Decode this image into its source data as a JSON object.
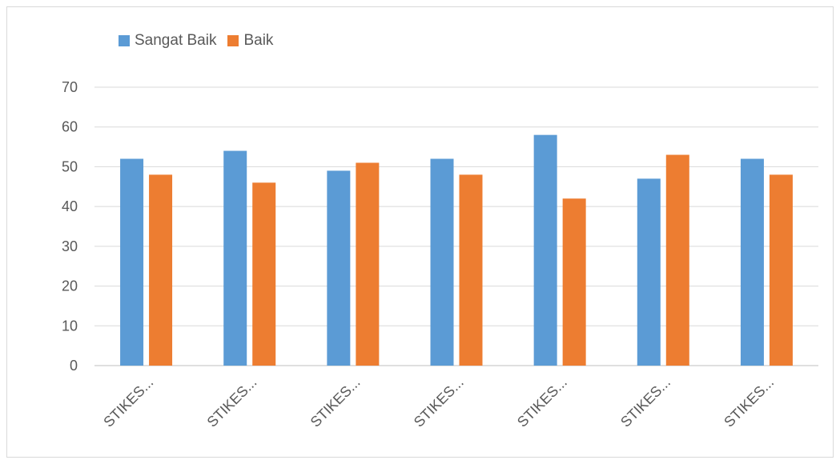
{
  "chart_data": {
    "type": "bar",
    "categories": [
      "STIKES...",
      "STIKES...",
      "STIKES...",
      "STIKES...",
      "STIKES...",
      "STIKES...",
      "STIKES..."
    ],
    "series": [
      {
        "name": "Sangat Baik",
        "color": "#5b9bd5",
        "values": [
          52,
          54,
          49,
          52,
          58,
          47,
          52
        ]
      },
      {
        "name": "Baik",
        "color": "#ed7d31",
        "values": [
          48,
          46,
          51,
          48,
          42,
          53,
          48
        ]
      }
    ],
    "title": "",
    "xlabel": "",
    "ylabel": "",
    "ylim": [
      0,
      70
    ],
    "yticks": [
      "0",
      "10",
      "20",
      "30",
      "40",
      "50",
      "60",
      "70"
    ],
    "grid": true,
    "legend_position": "top-left"
  }
}
